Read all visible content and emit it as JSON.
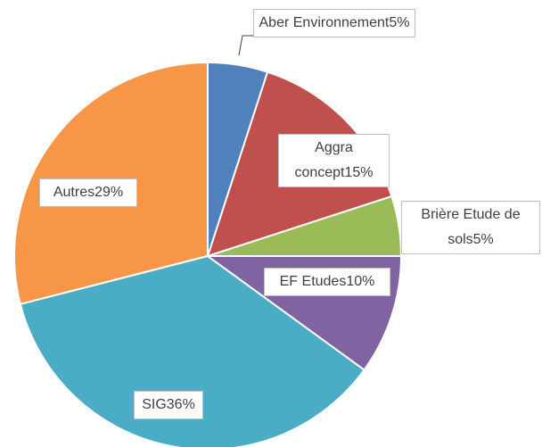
{
  "chart_data": {
    "type": "pie",
    "categories": [
      "Aber Environnement",
      "Aggra concept",
      "Brière Etude de sols",
      "EF Etudes",
      "SIG",
      "Autres"
    ],
    "values": [
      5,
      15,
      5,
      10,
      36,
      29
    ],
    "value_labels": [
      "5%",
      "15%",
      "5%",
      "10%",
      "36%",
      "29%"
    ],
    "colors": [
      "#4f81bd",
      "#c0504d",
      "#9bbb59",
      "#8064a2",
      "#4bacc6",
      "#f79646"
    ]
  }
}
